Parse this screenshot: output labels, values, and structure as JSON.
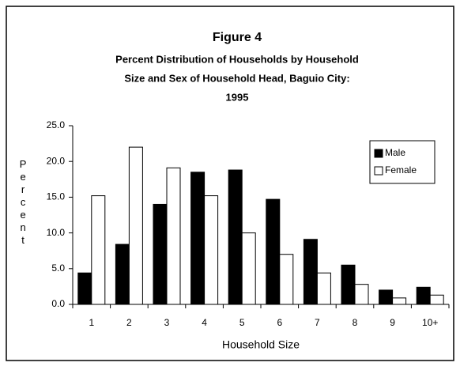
{
  "chart_data": {
    "type": "bar",
    "title": "Figure 4",
    "subtitle": [
      "Percent Distribution of Households by Household",
      "Size and Sex of Household Head, Baguio City:",
      "1995"
    ],
    "xlabel": "Household Size",
    "ylabel": "Percent",
    "categories": [
      "1",
      "2",
      "3",
      "4",
      "5",
      "6",
      "7",
      "8",
      "9",
      "10+"
    ],
    "series": [
      {
        "name": "Male",
        "color": "#000000",
        "values": [
          4.4,
          8.4,
          14.0,
          18.5,
          18.8,
          14.7,
          9.1,
          5.5,
          2.0,
          2.4
        ]
      },
      {
        "name": "Female",
        "color": "#ffffff",
        "values": [
          15.2,
          22.0,
          19.1,
          15.2,
          10.0,
          7.0,
          4.4,
          2.8,
          0.9,
          1.3
        ]
      }
    ],
    "ylim": [
      0,
      25
    ],
    "yticks": [
      {
        "value": 0,
        "label": "0.0"
      },
      {
        "value": 5,
        "label": "5.0"
      },
      {
        "value": 10,
        "label": "10.0"
      },
      {
        "value": 15,
        "label": "15.0"
      },
      {
        "value": 20,
        "label": "20.0"
      },
      {
        "value": 25,
        "label": "25.0"
      }
    ],
    "grid": false,
    "legend": "upper right"
  }
}
